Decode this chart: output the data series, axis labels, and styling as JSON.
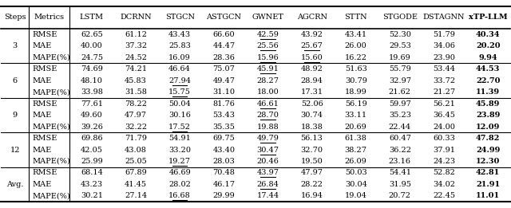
{
  "headers": [
    "Steps",
    "Metrics",
    "LSTM",
    "DCRNN",
    "STGCN",
    "ASTGCN",
    "GWNET",
    "AGCRN",
    "STTN",
    "STGODE",
    "DSTAGNN",
    "xTP-LLM"
  ],
  "rows": [
    {
      "step": "3",
      "values": [
        [
          "62.65",
          "61.12",
          "43.43",
          "66.60",
          "42.59",
          "43.92",
          "43.41",
          "52.30",
          "51.79",
          "40.34"
        ],
        [
          "40.00",
          "37.32",
          "25.83",
          "44.47",
          "25.56",
          "25.67",
          "26.00",
          "29.53",
          "34.06",
          "20.20"
        ],
        [
          "24.75",
          "24.52",
          "16.09",
          "28.36",
          "15.96",
          "15.60",
          "16.22",
          "19.69",
          "23.90",
          "9.94"
        ]
      ]
    },
    {
      "step": "6",
      "values": [
        [
          "74.69",
          "74.21",
          "46.64",
          "75.07",
          "45.91",
          "48.92",
          "51.63",
          "55.79",
          "53.44",
          "44.53"
        ],
        [
          "48.10",
          "45.83",
          "27.94",
          "49.47",
          "28.27",
          "28.94",
          "30.79",
          "32.97",
          "33.72",
          "22.70"
        ],
        [
          "33.98",
          "31.58",
          "15.75",
          "31.10",
          "18.00",
          "17.31",
          "18.99",
          "21.62",
          "21.27",
          "11.39"
        ]
      ]
    },
    {
      "step": "9",
      "values": [
        [
          "77.61",
          "78.22",
          "50.04",
          "81.76",
          "46.61",
          "52.06",
          "56.19",
          "59.97",
          "56.21",
          "45.89"
        ],
        [
          "49.60",
          "47.97",
          "30.16",
          "53.43",
          "28.70",
          "30.74",
          "33.11",
          "35.23",
          "36.45",
          "23.89"
        ],
        [
          "39.26",
          "32.22",
          "17.52",
          "35.35",
          "19.88",
          "18.38",
          "20.69",
          "22.44",
          "24.00",
          "12.09"
        ]
      ]
    },
    {
      "step": "12",
      "values": [
        [
          "69.86",
          "71.79",
          "54.91",
          "69.75",
          "49.79",
          "56.13",
          "61.38",
          "60.47",
          "60.33",
          "47.82"
        ],
        [
          "42.05",
          "43.08",
          "33.20",
          "43.40",
          "30.47",
          "32.70",
          "38.27",
          "36.22",
          "37.91",
          "24.99"
        ],
        [
          "25.99",
          "25.05",
          "19.27",
          "28.03",
          "20.46",
          "19.50",
          "26.09",
          "23.16",
          "24.23",
          "12.30"
        ]
      ]
    },
    {
      "step": "Avg.",
      "values": [
        [
          "68.14",
          "67.89",
          "46.69",
          "70.48",
          "43.97",
          "47.97",
          "50.03",
          "54.41",
          "52.82",
          "42.81"
        ],
        [
          "43.23",
          "41.45",
          "28.02",
          "46.17",
          "26.84",
          "28.22",
          "30.04",
          "31.95",
          "34.02",
          "21.91"
        ],
        [
          "30.21",
          "27.14",
          "16.68",
          "29.99",
          "17.44",
          "16.94",
          "19.04",
          "20.72",
          "22.45",
          "11.01"
        ]
      ]
    }
  ],
  "underline_indices": {
    "3": {
      "0": [
        4
      ],
      "1": [
        4,
        5
      ],
      "2": [
        4,
        5
      ]
    },
    "6": {
      "0": [
        4
      ],
      "1": [
        2
      ],
      "2": [
        2
      ]
    },
    "9": {
      "0": [
        4
      ],
      "1": [
        4
      ],
      "2": [
        2
      ]
    },
    "12": {
      "0": [
        4
      ],
      "1": [
        4
      ],
      "2": [
        2
      ]
    },
    "Avg.": {
      "0": [
        4
      ],
      "1": [
        4
      ],
      "2": [
        2
      ]
    }
  },
  "metric_labels": [
    "RMSE",
    "MAE",
    "MAPE(%)"
  ],
  "font_size": 7.0,
  "bg_color": "#ffffff"
}
